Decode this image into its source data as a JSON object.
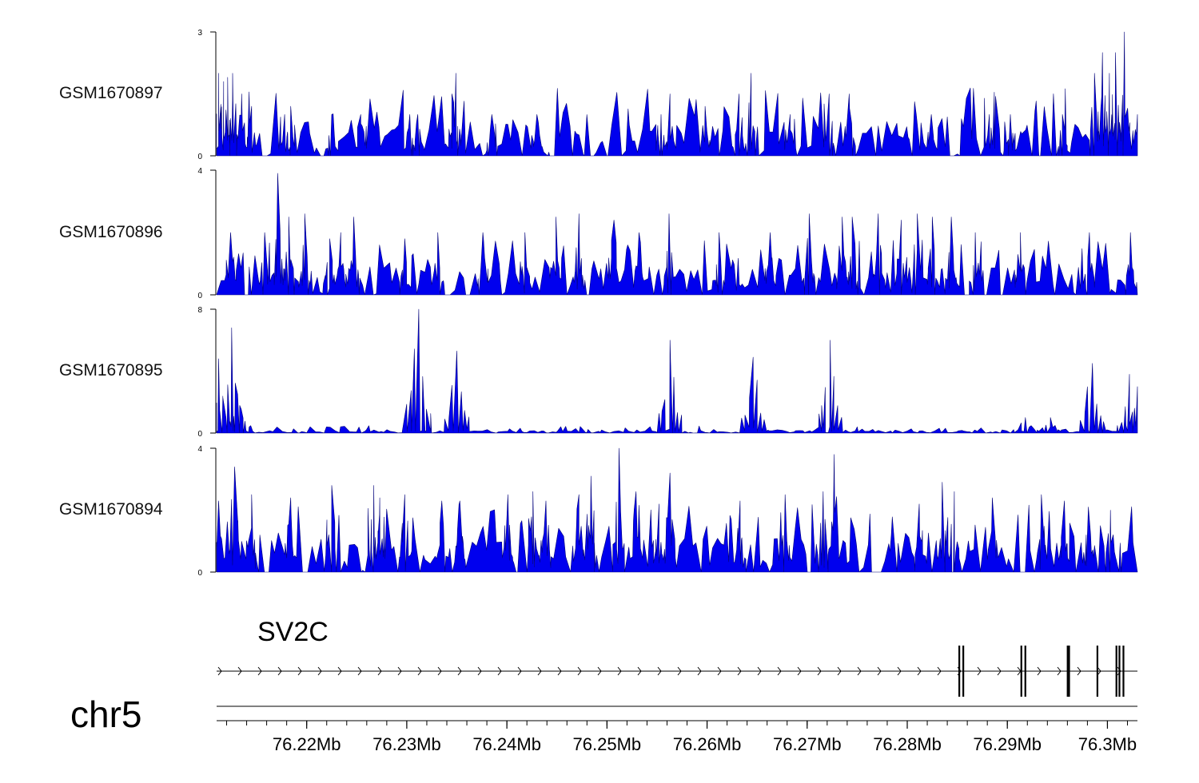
{
  "chart_data": {
    "type": "area",
    "title": "",
    "chromosome": "chr5",
    "x_range_mb": [
      76.211,
      76.303
    ],
    "x_ticks_mb": [
      76.22,
      76.23,
      76.24,
      76.25,
      76.26,
      76.27,
      76.28,
      76.29,
      76.3
    ],
    "x_tick_labels": [
      "76.22Mb",
      "76.23Mb",
      "76.24Mb",
      "76.25Mb",
      "76.26Mb",
      "76.27Mb",
      "76.28Mb",
      "76.29Mb",
      "76.3Mb"
    ],
    "fill_color": "#0000ee",
    "series": [
      {
        "name": "GSM1670897",
        "ylim": [
          0,
          3
        ],
        "y_tick_labels": [
          "0",
          "3"
        ],
        "peaks": [
          [
            76.2112,
            2
          ],
          [
            76.2117,
            1.8
          ],
          [
            76.2121,
            1.9
          ],
          [
            76.2126,
            2.0
          ],
          [
            76.2135,
            1.5
          ],
          [
            76.2145,
            1.2
          ],
          [
            76.2178,
            1
          ],
          [
            76.2184,
            1.2
          ],
          [
            76.2225,
            1
          ],
          [
            76.2254,
            1
          ],
          [
            76.2303,
            1.0
          ],
          [
            76.2311,
            1.0
          ],
          [
            76.2345,
            1.5
          ],
          [
            76.2349,
            2.0
          ],
          [
            76.2385,
            1
          ],
          [
            76.243,
            1
          ],
          [
            76.2554,
            1.0
          ],
          [
            76.2563,
            1.5
          ],
          [
            76.2598,
            1.2
          ],
          [
            76.2632,
            1.5
          ],
          [
            76.2644,
            2.0
          ],
          [
            76.2683,
            1
          ],
          [
            76.2722,
            1.5
          ],
          [
            76.2742,
            1.5
          ],
          [
            76.2824,
            1.0
          ],
          [
            76.2882,
            1
          ],
          [
            76.2903,
            1
          ],
          [
            76.2955,
            1
          ],
          [
            76.2987,
            2.0
          ],
          [
            76.2995,
            2.5
          ],
          [
            76.3002,
            2.0
          ],
          [
            76.3008,
            2.5
          ],
          [
            76.3017,
            3.0
          ],
          [
            76.303,
            1
          ]
        ]
      },
      {
        "name": "GSM1670896",
        "ylim": [
          0,
          4
        ],
        "y_tick_labels": [
          "0",
          "4"
        ],
        "peaks": [
          [
            76.2124,
            2
          ],
          [
            76.2158,
            2
          ],
          [
            76.2171,
            3.9
          ],
          [
            76.2182,
            2.5
          ],
          [
            76.2198,
            2.6
          ],
          [
            76.2223,
            1.8
          ],
          [
            76.2234,
            2
          ],
          [
            76.2247,
            2.5
          ],
          [
            76.2298,
            1.8
          ],
          [
            76.2331,
            2.0
          ],
          [
            76.2376,
            2.0
          ],
          [
            76.2418,
            2
          ],
          [
            76.2449,
            2.5
          ],
          [
            76.2472,
            2.6
          ],
          [
            76.2507,
            2.4
          ],
          [
            76.2532,
            2.0
          ],
          [
            76.2562,
            2.6
          ],
          [
            76.2612,
            2
          ],
          [
            76.2663,
            2.0
          ],
          [
            76.2702,
            2.6
          ],
          [
            76.2735,
            2.5
          ],
          [
            76.2745,
            2.5
          ],
          [
            76.2771,
            2.6
          ],
          [
            76.2794,
            2.4
          ],
          [
            76.281,
            2.6
          ],
          [
            76.2825,
            2.5
          ],
          [
            76.2844,
            2.5
          ],
          [
            76.2868,
            2.0
          ],
          [
            76.2913,
            2.0
          ],
          [
            76.2982,
            2.0
          ],
          [
            76.3023,
            2.0
          ]
        ]
      },
      {
        "name": "GSM1670895",
        "ylim": [
          0,
          8
        ],
        "y_tick_labels": [
          "0",
          "8"
        ],
        "peaks": [
          [
            76.2112,
            4.8
          ],
          [
            76.2125,
            6.8
          ],
          [
            76.2131,
            2.5
          ],
          [
            76.2312,
            8.0
          ],
          [
            76.235,
            5.3
          ],
          [
            76.2563,
            6.0
          ],
          [
            76.2646,
            4.9
          ],
          [
            76.2723,
            6.0
          ],
          [
            76.2918,
            1.0
          ],
          [
            76.2943,
            1.0
          ],
          [
            76.2985,
            4.5
          ],
          [
            76.3022,
            3.8
          ],
          [
            76.303,
            3.0
          ]
        ]
      },
      {
        "name": "GSM1670894",
        "ylim": [
          0,
          4
        ],
        "y_tick_labels": [
          "0",
          "4"
        ],
        "peaks": [
          [
            76.2112,
            2.3
          ],
          [
            76.2128,
            3.4
          ],
          [
            76.2145,
            2.5
          ],
          [
            76.2184,
            2.4
          ],
          [
            76.2225,
            2.8
          ],
          [
            76.2267,
            2.8
          ],
          [
            76.2273,
            2.4
          ],
          [
            76.2298,
            2.5
          ],
          [
            76.2335,
            2.3
          ],
          [
            76.2353,
            2.3
          ],
          [
            76.2401,
            2.5
          ],
          [
            76.2426,
            2.6
          ],
          [
            76.2439,
            2.3
          ],
          [
            76.2472,
            2.5
          ],
          [
            76.2484,
            3.1
          ],
          [
            76.2512,
            4.0
          ],
          [
            76.2529,
            2.6
          ],
          [
            76.2552,
            2.2
          ],
          [
            76.2563,
            3.2
          ],
          [
            76.2633,
            2.3
          ],
          [
            76.2678,
            2.5
          ],
          [
            76.2716,
            2.6
          ],
          [
            76.2727,
            3.8
          ],
          [
            76.2812,
            2.2
          ],
          [
            76.2835,
            2.9
          ],
          [
            76.2847,
            2.6
          ],
          [
            76.2885,
            2.4
          ],
          [
            76.2934,
            2.5
          ],
          [
            76.2957,
            2.3
          ],
          [
            76.2981,
            2.1
          ],
          [
            76.3003,
            2.0
          ]
        ]
      }
    ],
    "gene": {
      "name": "SV2C",
      "strand": "+",
      "exons_mb": [
        76.2852,
        76.2856,
        76.2914,
        76.2918,
        76.2961,
        76.299,
        76.3009,
        76.3012,
        76.3016
      ]
    }
  }
}
